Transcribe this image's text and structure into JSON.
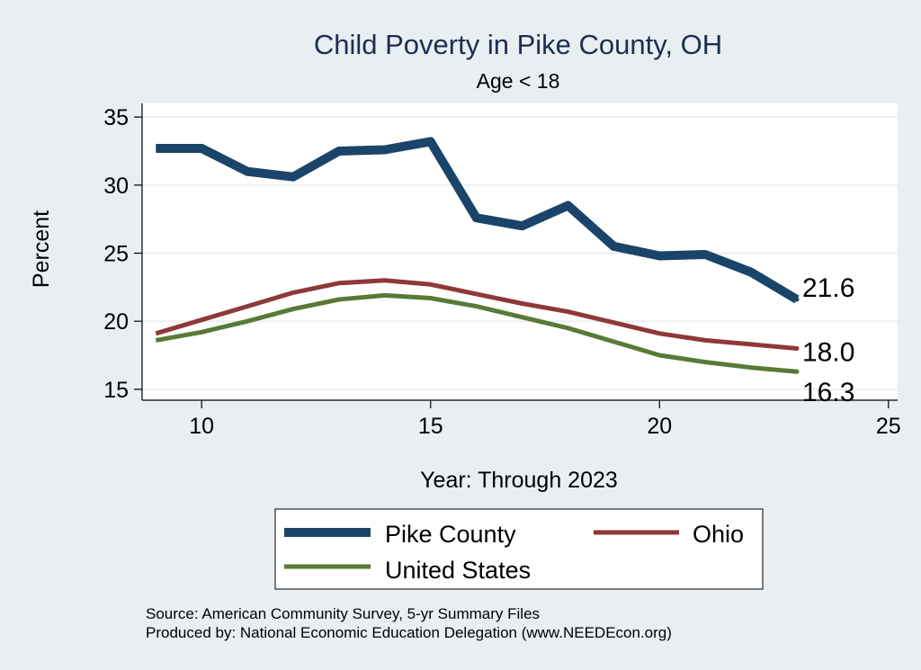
{
  "chart_data": {
    "type": "line",
    "title": "Child Poverty in Pike County, OH",
    "subtitle": "Age < 18",
    "xlabel": "Year: Through 2023",
    "ylabel": "Percent",
    "xlim": [
      8.7,
      25.2
    ],
    "ylim": [
      14.2,
      36
    ],
    "xticks": [
      10,
      15,
      20,
      25
    ],
    "yticks": [
      15,
      20,
      25,
      30,
      35
    ],
    "grid": true,
    "legend_position": "bottom",
    "x": [
      9,
      10,
      11,
      12,
      13,
      14,
      15,
      16,
      17,
      18,
      19,
      20,
      21,
      22,
      23
    ],
    "series": [
      {
        "name": "Pike County",
        "color": "#1a4469",
        "values": [
          32.7,
          32.7,
          31.0,
          30.6,
          32.5,
          32.6,
          33.2,
          27.6,
          27.0,
          28.5,
          25.5,
          24.8,
          24.9,
          23.6,
          21.6
        ],
        "end_label": "21.6"
      },
      {
        "name": "Ohio",
        "color": "#8e3839",
        "values": [
          19.1,
          20.1,
          21.1,
          22.1,
          22.8,
          23.0,
          22.7,
          22.0,
          21.3,
          20.7,
          19.9,
          19.1,
          18.6,
          18.3,
          18.0
        ],
        "end_label": "18.0"
      },
      {
        "name": "United States",
        "color": "#587a35",
        "values": [
          18.6,
          19.2,
          20.0,
          20.9,
          21.6,
          21.9,
          21.7,
          21.1,
          20.3,
          19.5,
          18.5,
          17.5,
          17.0,
          16.6,
          16.3
        ],
        "end_label": "16.3"
      }
    ],
    "notes": [
      "Source: American Community Survey, 5-yr Summary Files",
      "Produced by: National Economic Education Delegation (www.NEEDEcon.org)"
    ]
  }
}
